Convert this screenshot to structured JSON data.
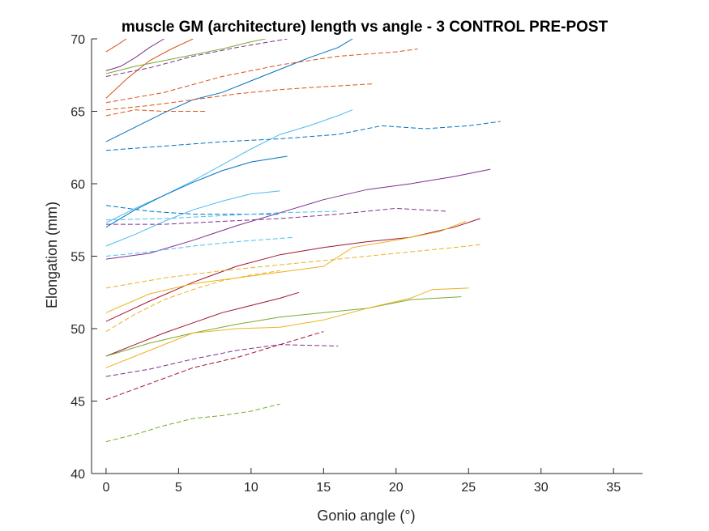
{
  "chart_data": {
    "type": "line",
    "title": "muscle GM (architecture) length vs angle - 3 CONTROL PRE-POST",
    "xlabel": "Gonio angle (°)",
    "ylabel": "Elongation (mm)",
    "xlim": [
      -1,
      37
    ],
    "ylim": [
      40,
      70
    ],
    "xticks": [
      0,
      5,
      10,
      15,
      20,
      25,
      30,
      35
    ],
    "yticks": [
      40,
      45,
      50,
      55,
      60,
      65,
      70
    ],
    "xtick_labels": [
      "0",
      "5",
      "10",
      "15",
      "20",
      "25",
      "30",
      "35"
    ],
    "ytick_labels": [
      "40",
      "45",
      "50",
      "55",
      "60",
      "65",
      "70"
    ],
    "grid": false,
    "legend": "none",
    "series": [
      {
        "color": "#D95319",
        "style": "solid",
        "x": [
          0,
          0.8,
          1.4
        ],
        "y": [
          69.1,
          69.6,
          70.0
        ]
      },
      {
        "color": "#D95319",
        "style": "solid",
        "x": [
          0,
          1.5,
          3,
          4.5,
          6
        ],
        "y": [
          65.9,
          67.3,
          68.5,
          69.3,
          70.0
        ]
      },
      {
        "color": "#7E2F8E",
        "style": "solid",
        "x": [
          0,
          1,
          2,
          3,
          4
        ],
        "y": [
          67.8,
          68.1,
          68.7,
          69.4,
          70.0
        ]
      },
      {
        "color": "#77AC30",
        "style": "solid",
        "x": [
          0,
          2,
          4,
          6,
          8,
          10,
          11
        ],
        "y": [
          67.6,
          68.1,
          68.5,
          68.9,
          69.3,
          69.8,
          70.0
        ]
      },
      {
        "color": "#7E2F8E",
        "style": "dashed",
        "x": [
          0,
          3,
          6,
          9,
          12.5
        ],
        "y": [
          67.4,
          68.0,
          68.8,
          69.4,
          70.0
        ]
      },
      {
        "color": "#0072BD",
        "style": "solid",
        "x": [
          0,
          2,
          4,
          6,
          8,
          10,
          12,
          14,
          16,
          17
        ],
        "y": [
          62.9,
          63.9,
          64.9,
          65.8,
          66.3,
          67.1,
          67.9,
          68.7,
          69.4,
          70.0
        ]
      },
      {
        "color": "#D95319",
        "style": "dashed",
        "x": [
          0,
          4,
          8,
          12,
          16,
          20,
          21.5
        ],
        "y": [
          65.6,
          66.3,
          67.4,
          68.2,
          68.8,
          69.1,
          69.3
        ]
      },
      {
        "color": "#D95319",
        "style": "dashed",
        "x": [
          0,
          3,
          6,
          9,
          12,
          15,
          18.5
        ],
        "y": [
          65.1,
          65.4,
          65.8,
          66.2,
          66.5,
          66.7,
          66.9
        ]
      },
      {
        "color": "#D95319",
        "style": "dashed",
        "x": [
          0,
          2,
          4,
          7
        ],
        "y": [
          64.7,
          65.1,
          65.0,
          65.0
        ]
      },
      {
        "color": "#4DBEEE",
        "style": "solid",
        "x": [
          0,
          2,
          4,
          6,
          8,
          10,
          12,
          14,
          16,
          17
        ],
        "y": [
          57.3,
          58.3,
          59.2,
          60.2,
          61.3,
          62.4,
          63.4,
          64.0,
          64.7,
          65.1
        ]
      },
      {
        "color": "#0072BD",
        "style": "dashed",
        "x": [
          0,
          4,
          8,
          12,
          16,
          19,
          22,
          25,
          27.2
        ],
        "y": [
          62.3,
          62.6,
          62.9,
          63.1,
          63.4,
          64.0,
          63.8,
          64.0,
          64.3
        ]
      },
      {
        "color": "#0072BD",
        "style": "solid",
        "x": [
          0,
          2,
          4,
          6,
          8,
          10,
          12.5
        ],
        "y": [
          57.0,
          58.2,
          59.2,
          60.1,
          60.9,
          61.5,
          61.9
        ]
      },
      {
        "color": "#7E2F8E",
        "style": "solid",
        "x": [
          0,
          3,
          6,
          9,
          12,
          15,
          18,
          21,
          24,
          26.5
        ],
        "y": [
          54.8,
          55.2,
          56.1,
          57.1,
          58.0,
          58.9,
          59.6,
          60.0,
          60.5,
          61.0
        ]
      },
      {
        "color": "#4DBEEE",
        "style": "solid",
        "x": [
          0,
          2,
          4,
          6,
          8,
          10,
          12
        ],
        "y": [
          55.7,
          56.5,
          57.4,
          58.2,
          58.8,
          59.3,
          59.5
        ]
      },
      {
        "color": "#0072BD",
        "style": "dashed",
        "x": [
          0,
          3,
          6,
          9,
          12
        ],
        "y": [
          58.5,
          58.1,
          57.9,
          57.9,
          57.9
        ]
      },
      {
        "color": "#4DBEEE",
        "style": "dashed",
        "x": [
          0,
          4,
          8,
          12,
          16
        ],
        "y": [
          57.5,
          57.6,
          57.8,
          58.0,
          58.1
        ]
      },
      {
        "color": "#7E2F8E",
        "style": "dashed",
        "x": [
          0,
          4,
          8,
          12,
          16,
          20,
          23.5
        ],
        "y": [
          57.2,
          57.2,
          57.4,
          57.6,
          57.9,
          58.3,
          58.1
        ]
      },
      {
        "color": "#4DBEEE",
        "style": "dashed",
        "x": [
          0,
          3,
          6,
          9,
          13
        ],
        "y": [
          55.0,
          55.3,
          55.7,
          56.0,
          56.3
        ]
      },
      {
        "color": "#A2142F",
        "style": "solid",
        "x": [
          0,
          3,
          6,
          9,
          12,
          15,
          18,
          21,
          24,
          25.8
        ],
        "y": [
          50.5,
          51.9,
          53.2,
          54.3,
          55.1,
          55.6,
          56.0,
          56.3,
          57.0,
          57.6
        ]
      },
      {
        "color": "#EDB120",
        "style": "solid",
        "x": [
          0,
          3,
          6,
          9,
          12,
          15,
          17,
          20,
          23,
          24.8
        ],
        "y": [
          51.1,
          52.4,
          53.1,
          53.5,
          53.9,
          54.3,
          55.6,
          56.1,
          56.7,
          57.4
        ]
      },
      {
        "color": "#EDB120",
        "style": "dashed",
        "x": [
          0,
          4,
          8,
          12,
          16,
          20,
          24,
          25.8
        ],
        "y": [
          52.8,
          53.5,
          54.0,
          54.4,
          54.8,
          55.2,
          55.6,
          55.8
        ]
      },
      {
        "color": "#EDB120",
        "style": "dashed",
        "x": [
          0,
          2,
          4,
          6,
          8,
          10,
          12
        ],
        "y": [
          49.8,
          51.0,
          52.0,
          52.7,
          53.3,
          53.7,
          54.0
        ]
      },
      {
        "color": "#A2142F",
        "style": "solid",
        "x": [
          0,
          2,
          4,
          6,
          8,
          10,
          12,
          13.3
        ],
        "y": [
          48.1,
          48.9,
          49.7,
          50.4,
          51.1,
          51.6,
          52.1,
          52.5
        ]
      },
      {
        "color": "#77AC30",
        "style": "solid",
        "x": [
          0,
          3,
          6,
          9,
          12,
          15,
          18,
          21,
          24.5
        ],
        "y": [
          48.1,
          49.0,
          49.7,
          50.3,
          50.8,
          51.1,
          51.4,
          52.0,
          52.2
        ]
      },
      {
        "color": "#EDB120",
        "style": "solid",
        "x": [
          0,
          3,
          6,
          9,
          12,
          15,
          18,
          21,
          22.5,
          25
        ],
        "y": [
          47.3,
          48.5,
          49.7,
          50.0,
          50.1,
          50.6,
          51.4,
          52.1,
          52.7,
          52.8
        ]
      },
      {
        "color": "#7E2F8E",
        "style": "dashed",
        "x": [
          0,
          3,
          6,
          9,
          12,
          16
        ],
        "y": [
          46.7,
          47.2,
          47.9,
          48.5,
          48.9,
          48.8
        ]
      },
      {
        "color": "#A2142F",
        "style": "dashed",
        "x": [
          0,
          3,
          6,
          9,
          12,
          15
        ],
        "y": [
          45.1,
          46.2,
          47.3,
          48.0,
          48.9,
          49.8
        ]
      },
      {
        "color": "#77AC30",
        "style": "dashed",
        "x": [
          0,
          2,
          4,
          6,
          8,
          10,
          12
        ],
        "y": [
          42.2,
          42.7,
          43.3,
          43.8,
          44.0,
          44.3,
          44.8
        ]
      }
    ]
  }
}
